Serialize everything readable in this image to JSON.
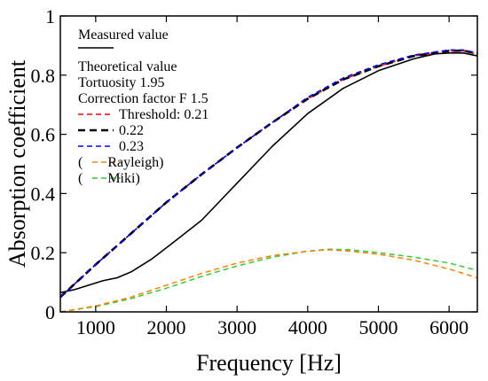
{
  "chart_data": {
    "type": "line",
    "xlabel": "Frequency [Hz]",
    "ylabel": "Absorption coefficient",
    "xlim": [
      500,
      6400
    ],
    "ylim": [
      0,
      1
    ],
    "x_ticks": [
      "1000",
      "2000",
      "3000",
      "4000",
      "5000",
      "6000"
    ],
    "x_tick_values": [
      1000,
      2000,
      3000,
      4000,
      5000,
      6000
    ],
    "y_ticks": [
      "0",
      "0.2",
      "0.4",
      "0.6",
      "0.8",
      "1"
    ],
    "y_tick_values": [
      0,
      0.2,
      0.4,
      0.6,
      0.8,
      1
    ],
    "grid": false,
    "legend_position": "top-left",
    "legend": {
      "measured_label": "Measured value",
      "theory_lines": [
        "Theoretical value",
        "Tortuosity 1.95",
        "Correction factor  F 1.5"
      ],
      "entries": [
        {
          "label": "Threshold: 0.21",
          "series": 1
        },
        {
          "label": "0.22",
          "series": 2
        },
        {
          "label": "0.23",
          "series": 3
        },
        {
          "label": "(       Rayleigh)",
          "series": 4
        },
        {
          "label": "(       Miki)",
          "series": 5
        }
      ]
    },
    "series": [
      {
        "name": "Measured value",
        "color": "#000000",
        "dash": "solid",
        "x": [
          500,
          700,
          900,
          1100,
          1300,
          1500,
          1800,
          2100,
          2500,
          3000,
          3500,
          4000,
          4500,
          5000,
          5500,
          5800,
          6000,
          6200,
          6400
        ],
        "y": [
          0.065,
          0.075,
          0.09,
          0.105,
          0.115,
          0.135,
          0.18,
          0.235,
          0.31,
          0.435,
          0.56,
          0.67,
          0.755,
          0.815,
          0.855,
          0.872,
          0.875,
          0.875,
          0.865
        ]
      },
      {
        "name": "Threshold: 0.21",
        "color": "#ff0000",
        "dash": "dashed",
        "x": [
          500,
          1000,
          1500,
          2000,
          2500,
          3000,
          3500,
          4000,
          4500,
          5000,
          5500,
          6000,
          6200,
          6400
        ],
        "y": [
          0.05,
          0.16,
          0.265,
          0.37,
          0.465,
          0.555,
          0.64,
          0.72,
          0.785,
          0.83,
          0.865,
          0.88,
          0.882,
          0.87
        ]
      },
      {
        "name": "0.22",
        "color": "#000000",
        "dash": "bold-dashed",
        "x": [
          500,
          1000,
          1500,
          2000,
          2500,
          3000,
          3500,
          4000,
          4500,
          5000,
          5500,
          6000,
          6200,
          6400
        ],
        "y": [
          0.05,
          0.16,
          0.265,
          0.37,
          0.465,
          0.555,
          0.64,
          0.72,
          0.785,
          0.83,
          0.865,
          0.882,
          0.883,
          0.873
        ]
      },
      {
        "name": "0.23",
        "color": "#0000ff",
        "dash": "dashed",
        "x": [
          500,
          1000,
          1500,
          2000,
          2500,
          3000,
          3500,
          4000,
          4500,
          5000,
          5500,
          6000,
          6200,
          6400
        ],
        "y": [
          0.05,
          0.16,
          0.265,
          0.37,
          0.465,
          0.555,
          0.64,
          0.725,
          0.79,
          0.835,
          0.868,
          0.885,
          0.885,
          0.875
        ]
      },
      {
        "name": "Rayleigh",
        "color": "#ff8000",
        "dash": "dashed",
        "x": [
          500,
          1000,
          1500,
          2000,
          2500,
          3000,
          3500,
          4000,
          4300,
          4600,
          5000,
          5500,
          6000,
          6400
        ],
        "y": [
          0.0,
          0.02,
          0.05,
          0.09,
          0.13,
          0.165,
          0.19,
          0.205,
          0.21,
          0.205,
          0.195,
          0.175,
          0.145,
          0.115
        ]
      },
      {
        "name": "Miki",
        "color": "#33cc33",
        "dash": "dashed",
        "x": [
          500,
          1000,
          1500,
          2000,
          2500,
          3000,
          3500,
          4000,
          4300,
          4600,
          5000,
          5500,
          6000,
          6400
        ],
        "y": [
          0.0,
          0.018,
          0.045,
          0.08,
          0.12,
          0.155,
          0.185,
          0.205,
          0.212,
          0.21,
          0.2,
          0.185,
          0.165,
          0.14
        ]
      }
    ]
  }
}
